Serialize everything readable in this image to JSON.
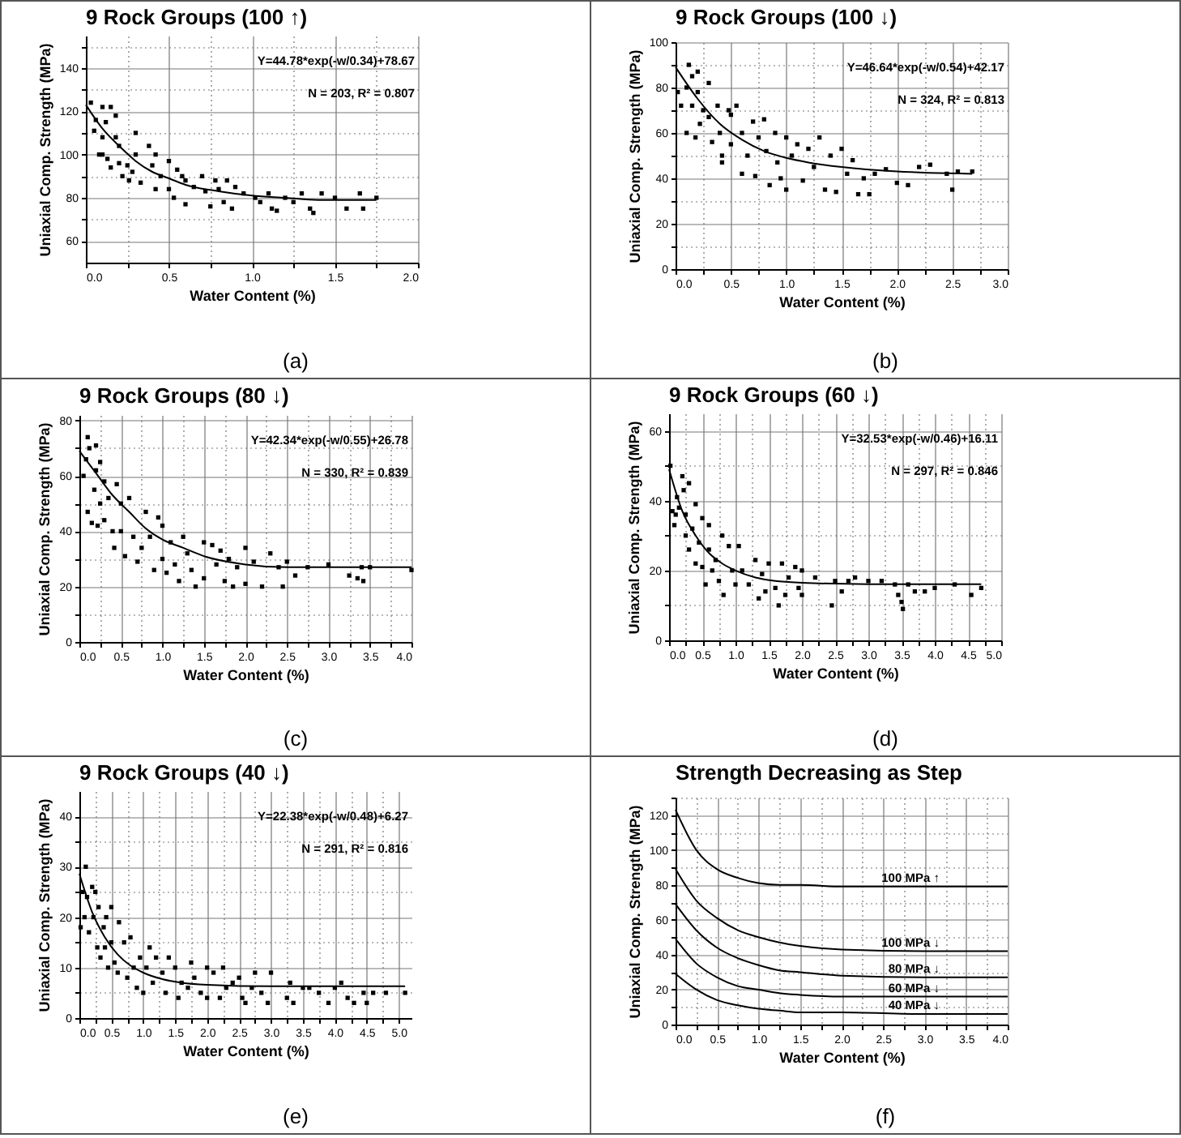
{
  "chart_data": [
    {
      "type": "scatter",
      "title": "9 Rock Groups (100 ↑)",
      "xlabel": "Water Content (%)",
      "ylabel": "Uniaxial Comp. Strength (MPa)",
      "grid": true,
      "annotations": [
        "Y=44.78*exp(-w/0.34)+78.67",
        "N = 203,    R² = 0.807",
        "(a)"
      ],
      "xlim": [
        0,
        2
      ],
      "xticks": [
        {
          "value": 0,
          "label": "0.0"
        },
        {
          "value": 0.25,
          "label": null
        },
        {
          "value": 0.5,
          "label": "0.5"
        },
        {
          "value": 0.75,
          "label": null
        },
        {
          "value": 1,
          "label": "1.0"
        },
        {
          "value": 1.25,
          "label": null
        },
        {
          "value": 1.5,
          "label": "1.5"
        },
        {
          "value": 1.75,
          "label": null
        },
        {
          "value": 2,
          "label": "2.0"
        }
      ],
      "ylim": [
        50,
        155
      ],
      "yticks": [
        60,
        {
          "value": 70,
          "label": null
        },
        80,
        {
          "value": 90,
          "label": null
        },
        100,
        {
          "value": 110,
          "label": null
        },
        120,
        {
          "value": 130,
          "label": null
        },
        140,
        {
          "value": 150,
          "label": null
        }
      ],
      "series": [
        {
          "marker": "square",
          "color": "#000000",
          "x": [
            0.03,
            0.06,
            0.05,
            0.1,
            0.15,
            0.12,
            0.1,
            0.1,
            0.13,
            0.15,
            0.18,
            0.2,
            0.2,
            0.22,
            0.25,
            0.26,
            0.3,
            0.3,
            0.28,
            0.33,
            0.38,
            0.4,
            0.42,
            0.42,
            0.45,
            0.5,
            0.5,
            0.53,
            0.55,
            0.58,
            0.6,
            0.6,
            0.65,
            0.7,
            0.72,
            0.75,
            0.78,
            0.8,
            0.83,
            0.85,
            0.88,
            0.9,
            0.95,
            1.02,
            1.05,
            1.1,
            1.12,
            1.15,
            1.2,
            1.25,
            1.3,
            1.35,
            1.37,
            1.42,
            1.5,
            1.57,
            1.65,
            1.67,
            1.75,
            0.18,
            0.08
          ],
          "values": [
            124,
            116,
            111,
            122,
            122,
            115,
            108,
            100,
            98,
            94,
            108,
            104,
            96,
            90,
            95,
            88,
            110,
            100,
            92,
            87,
            104,
            95,
            100,
            84,
            90,
            97,
            84,
            80,
            93,
            90,
            88,
            77,
            85,
            90,
            83,
            76,
            88,
            84,
            78,
            88,
            75,
            85,
            82,
            80,
            78,
            82,
            75,
            74,
            80,
            78,
            82,
            75,
            73,
            82,
            80,
            75,
            82,
            75,
            80,
            118,
            100
          ]
        },
        {
          "type": "line",
          "color": "#000000",
          "x": [
            0,
            0.1,
            0.2,
            0.3,
            0.4,
            0.5,
            0.6,
            0.8,
            1.0,
            1.2,
            1.4,
            1.75
          ],
          "values": [
            123,
            112,
            104,
            97,
            92,
            89,
            86,
            83,
            81,
            80,
            79,
            79
          ]
        }
      ]
    },
    {
      "type": "scatter",
      "title": "9 Rock Groups (100 ↓)",
      "xlabel": "Water Content (%)",
      "ylabel": "Uniaxial Comp. Strength (MPa)",
      "grid": true,
      "annotations": [
        "Y=46.64*exp(-w/0.54)+42.17",
        "N = 324,    R² = 0.813",
        "(b)"
      ],
      "xlim": [
        0,
        3
      ],
      "xticks": [
        {
          "value": 0,
          "label": "0.0"
        },
        {
          "value": 0.25,
          "label": null
        },
        {
          "value": 0.5,
          "label": "0.5"
        },
        {
          "value": 0.75,
          "label": null
        },
        {
          "value": 1,
          "label": "1.0"
        },
        {
          "value": 1.25,
          "label": null
        },
        {
          "value": 1.5,
          "label": "1.5"
        },
        {
          "value": 1.75,
          "label": null
        },
        {
          "value": 2,
          "label": "2.0"
        },
        {
          "value": 2.25,
          "label": null
        },
        {
          "value": 2.5,
          "label": "2.5"
        },
        {
          "value": 2.75,
          "label": null
        },
        {
          "value": 3,
          "label": "3.0"
        }
      ],
      "ylim": [
        0,
        100
      ],
      "yticks": [
        0,
        {
          "value": 10,
          "label": null
        },
        20,
        {
          "value": 30,
          "label": null
        },
        40,
        {
          "value": 50,
          "label": null
        },
        60,
        {
          "value": 70,
          "label": null
        },
        80,
        {
          "value": 90,
          "label": null
        },
        100
      ],
      "series": [
        {
          "marker": "square",
          "color": "#000000",
          "x": [
            0.02,
            0.05,
            0.1,
            0.1,
            0.12,
            0.15,
            0.15,
            0.18,
            0.2,
            0.2,
            0.22,
            0.25,
            0.3,
            0.3,
            0.33,
            0.38,
            0.4,
            0.42,
            0.42,
            0.48,
            0.5,
            0.5,
            0.55,
            0.6,
            0.6,
            0.65,
            0.7,
            0.72,
            0.75,
            0.8,
            0.82,
            0.85,
            0.9,
            0.92,
            0.95,
            1.0,
            1.0,
            1.05,
            1.1,
            1.15,
            1.2,
            1.25,
            1.3,
            1.35,
            1.4,
            1.45,
            1.5,
            1.55,
            1.6,
            1.65,
            1.7,
            1.75,
            1.8,
            1.9,
            2.0,
            2.1,
            2.2,
            2.3,
            2.45,
            2.5,
            2.55,
            2.68
          ],
          "values": [
            78,
            72,
            60,
            80,
            90,
            85,
            72,
            58,
            78,
            87,
            64,
            70,
            82,
            67,
            56,
            72,
            60,
            50,
            47,
            70,
            68,
            55,
            72,
            60,
            42,
            50,
            65,
            41,
            58,
            66,
            52,
            37,
            60,
            47,
            40,
            58,
            35,
            50,
            55,
            39,
            53,
            45,
            58,
            35,
            50,
            34,
            53,
            42,
            48,
            33,
            40,
            33,
            42,
            44,
            38,
            37,
            45,
            46,
            42,
            35,
            43,
            43
          ]
        },
        {
          "type": "line",
          "color": "#000000",
          "x": [
            0,
            0.2,
            0.4,
            0.6,
            0.8,
            1.0,
            1.2,
            1.5,
            2.0,
            2.68
          ],
          "values": [
            89,
            75,
            64,
            57,
            52,
            49,
            47,
            45,
            43,
            42
          ]
        }
      ]
    },
    {
      "type": "scatter",
      "title": "9 Rock Groups (80 ↓)",
      "xlabel": "Water Content (%)",
      "ylabel": "Uniaxial Comp. Strength (MPa)",
      "grid": true,
      "annotations": [
        "Y=42.34*exp(-w/0.55)+26.78",
        "N = 330,    R² = 0.839",
        "(c)"
      ],
      "xlim": [
        0,
        4
      ],
      "xticks": [
        {
          "value": 0,
          "label": "0.0"
        },
        {
          "value": 0.25,
          "label": null
        },
        {
          "value": 0.5,
          "label": "0.5"
        },
        {
          "value": 0.75,
          "label": null
        },
        {
          "value": 1,
          "label": "1.0"
        },
        {
          "value": 1.25,
          "label": null
        },
        {
          "value": 1.5,
          "label": "1.5"
        },
        {
          "value": 1.75,
          "label": null
        },
        {
          "value": 2,
          "label": "2.0"
        },
        {
          "value": 2.25,
          "label": null
        },
        {
          "value": 2.5,
          "label": "2.5"
        },
        {
          "value": 2.75,
          "label": null
        },
        {
          "value": 3,
          "label": "3.0"
        },
        {
          "value": 3.25,
          "label": null
        },
        {
          "value": 3.5,
          "label": "3.5"
        },
        {
          "value": 3.75,
          "label": null
        },
        {
          "value": 4,
          "label": "4.0"
        }
      ],
      "ylim": [
        0,
        82
      ],
      "yticks": [
        0,
        {
          "value": 10,
          "label": null
        },
        20,
        {
          "value": 30,
          "label": null
        },
        40,
        {
          "value": 50,
          "label": null
        },
        60,
        {
          "value": 70,
          "label": null
        },
        80
      ],
      "series": [
        {
          "marker": "square",
          "color": "#000000",
          "x": [
            0.05,
            0.08,
            0.1,
            0.12,
            0.1,
            0.15,
            0.18,
            0.2,
            0.2,
            0.22,
            0.25,
            0.25,
            0.3,
            0.3,
            0.35,
            0.4,
            0.42,
            0.45,
            0.5,
            0.5,
            0.55,
            0.6,
            0.65,
            0.7,
            0.75,
            0.8,
            0.85,
            0.9,
            0.95,
            1.0,
            1.0,
            1.05,
            1.1,
            1.15,
            1.2,
            1.25,
            1.3,
            1.35,
            1.4,
            1.5,
            1.5,
            1.6,
            1.65,
            1.7,
            1.75,
            1.8,
            1.85,
            1.9,
            2.0,
            2.0,
            2.1,
            2.2,
            2.3,
            2.4,
            2.45,
            2.5,
            2.6,
            2.75,
            3.0,
            3.25,
            3.35,
            3.42,
            3.4,
            3.5,
            4.0
          ],
          "values": [
            60,
            66,
            74,
            70,
            47,
            43,
            55,
            71,
            62,
            42,
            65,
            50,
            58,
            44,
            52,
            40,
            34,
            57,
            50,
            40,
            31,
            52,
            38,
            29,
            34,
            47,
            38,
            26,
            45,
            42,
            30,
            25,
            36,
            28,
            22,
            38,
            32,
            26,
            20,
            36,
            23,
            35,
            28,
            33,
            22,
            30,
            20,
            27,
            34,
            21,
            29,
            20,
            32,
            27,
            20,
            29,
            24,
            27,
            28,
            24,
            23,
            22,
            27,
            27,
            26
          ]
        },
        {
          "type": "line",
          "color": "#000000",
          "x": [
            0,
            0.2,
            0.4,
            0.6,
            0.8,
            1.0,
            1.25,
            1.5,
            2.0,
            2.5,
            4.0
          ],
          "values": [
            69,
            61,
            53,
            47,
            41,
            37,
            34,
            31,
            28,
            27,
            27
          ]
        }
      ]
    },
    {
      "type": "scatter",
      "title": "9 Rock Groups (60 ↓)",
      "xlabel": "Water Content (%)",
      "ylabel": "Uniaxial Comp. Strength (MPa)",
      "grid": true,
      "annotations": [
        "Y=32.53*exp(-w/0.46)+16.11",
        "N = 297,    R² = 0.846",
        "(d)"
      ],
      "xlim": [
        0,
        5
      ],
      "xticks": [
        {
          "value": 0,
          "label": "0.0"
        },
        {
          "value": 0.25,
          "label": null
        },
        {
          "value": 0.5,
          "label": "0.5"
        },
        {
          "value": 0.75,
          "label": null
        },
        {
          "value": 1,
          "label": "1.0"
        },
        {
          "value": 1.25,
          "label": null
        },
        {
          "value": 1.5,
          "label": "1.5"
        },
        {
          "value": 1.75,
          "label": null
        },
        {
          "value": 2,
          "label": "2.0"
        },
        {
          "value": 2.25,
          "label": null
        },
        {
          "value": 2.5,
          "label": "2.5"
        },
        {
          "value": 2.75,
          "label": null
        },
        {
          "value": 3,
          "label": "3.0"
        },
        {
          "value": 3.25,
          "label": null
        },
        {
          "value": 3.5,
          "label": "3.5"
        },
        {
          "value": 3.75,
          "label": null
        },
        {
          "value": 4,
          "label": "4.0"
        },
        {
          "value": 4.25,
          "label": null
        },
        {
          "value": 4.5,
          "label": "4.5"
        },
        {
          "value": 4.75,
          "label": null
        },
        {
          "value": 5,
          "label": "5.0"
        }
      ],
      "ylim": [
        0,
        65
      ],
      "yticks": [
        0,
        {
          "value": 10,
          "label": null
        },
        20,
        {
          "value": 30,
          "label": null
        },
        40,
        {
          "value": 50,
          "label": null
        },
        60
      ],
      "series": [
        {
          "marker": "square",
          "color": "#000000",
          "x": [
            0.02,
            0.05,
            0.08,
            0.1,
            0.12,
            0.15,
            0.2,
            0.22,
            0.25,
            0.25,
            0.3,
            0.3,
            0.35,
            0.4,
            0.4,
            0.45,
            0.5,
            0.5,
            0.55,
            0.6,
            0.6,
            0.65,
            0.7,
            0.75,
            0.8,
            0.82,
            0.9,
            0.95,
            1.0,
            1.05,
            1.1,
            1.2,
            1.3,
            1.35,
            1.4,
            1.45,
            1.5,
            1.6,
            1.65,
            1.7,
            1.75,
            1.8,
            1.9,
            1.95,
            2.0,
            2.0,
            2.2,
            2.45,
            2.5,
            2.6,
            2.7,
            2.8,
            3.0,
            3.2,
            3.4,
            3.45,
            3.5,
            3.52,
            3.6,
            3.7,
            3.85,
            4.0,
            4.3,
            4.55,
            4.7
          ],
          "values": [
            50,
            37,
            33,
            36,
            41,
            38,
            47,
            43,
            30,
            36,
            45,
            26,
            32,
            39,
            22,
            28,
            35,
            21,
            16,
            26,
            33,
            20,
            23,
            17,
            30,
            13,
            27,
            20,
            16,
            27,
            20,
            16,
            23,
            12,
            19,
            14,
            22,
            15,
            10,
            22,
            13,
            18,
            21,
            15,
            20,
            13,
            18,
            10,
            17,
            14,
            17,
            18,
            17,
            17,
            16,
            13,
            11,
            9,
            16,
            14,
            14,
            15,
            16,
            13,
            15
          ]
        },
        {
          "type": "line",
          "color": "#000000",
          "x": [
            0,
            0.2,
            0.4,
            0.6,
            0.8,
            1.0,
            1.3,
            1.6,
            2.0,
            3.0,
            4.7
          ],
          "values": [
            49,
            37,
            30,
            25,
            22,
            20,
            18,
            17,
            16.5,
            16.1,
            16.1
          ]
        }
      ]
    },
    {
      "type": "scatter",
      "title": "9 Rock Groups (40 ↓)",
      "xlabel": "Water Content (%)",
      "ylabel": "Uniaxial Comp. Strength (MPa)",
      "grid": true,
      "annotations": [
        "Y=22.38*exp(-w/0.48)+6.27",
        "N = 291,    R² = 0.816",
        "(e)"
      ],
      "xlim": [
        0,
        5.2
      ],
      "xticks": [
        {
          "value": 0,
          "label": "0.0"
        },
        {
          "value": 0.25,
          "label": null
        },
        {
          "value": 0.5,
          "label": "0.5"
        },
        {
          "value": 0.75,
          "label": null
        },
        {
          "value": 1,
          "label": "1.0"
        },
        {
          "value": 1.25,
          "label": null
        },
        {
          "value": 1.5,
          "label": "1.5"
        },
        {
          "value": 1.75,
          "label": null
        },
        {
          "value": 2,
          "label": "2.0"
        },
        {
          "value": 2.25,
          "label": null
        },
        {
          "value": 2.5,
          "label": "2.5"
        },
        {
          "value": 2.75,
          "label": null
        },
        {
          "value": 3,
          "label": "3.0"
        },
        {
          "value": 3.25,
          "label": null
        },
        {
          "value": 3.5,
          "label": "3.5"
        },
        {
          "value": 3.75,
          "label": null
        },
        {
          "value": 4,
          "label": "4.0"
        },
        {
          "value": 4.25,
          "label": null
        },
        {
          "value": 4.5,
          "label": "4.5"
        },
        {
          "value": 4.75,
          "label": null
        },
        {
          "value": 5,
          "label": "5.0"
        }
      ],
      "ylim": [
        0,
        45
      ],
      "yticks": [
        0,
        {
          "value": 5,
          "label": null
        },
        10,
        {
          "value": 15,
          "label": null
        },
        20,
        {
          "value": 25,
          "label": null
        },
        30,
        {
          "value": 35,
          "label": null
        },
        40
      ],
      "series": [
        {
          "marker": "square",
          "color": "#000000",
          "x": [
            0.02,
            0.05,
            0.08,
            0.1,
            0.12,
            0.15,
            0.2,
            0.22,
            0.25,
            0.28,
            0.3,
            0.33,
            0.38,
            0.4,
            0.42,
            0.45,
            0.5,
            0.5,
            0.55,
            0.6,
            0.62,
            0.7,
            0.75,
            0.8,
            0.85,
            0.9,
            0.95,
            1.0,
            1.05,
            1.1,
            1.15,
            1.2,
            1.3,
            1.35,
            1.4,
            1.5,
            1.55,
            1.6,
            1.7,
            1.75,
            1.8,
            1.9,
            2.0,
            2.0,
            2.1,
            2.2,
            2.25,
            2.3,
            2.4,
            2.5,
            2.55,
            2.6,
            2.7,
            2.75,
            2.85,
            2.95,
            3.0,
            3.25,
            3.3,
            3.35,
            3.5,
            3.6,
            3.75,
            3.9,
            4.0,
            4.1,
            4.2,
            4.3,
            4.45,
            4.5,
            4.6,
            4.8,
            5.1
          ],
          "values": [
            18,
            25,
            20,
            30,
            24,
            17,
            26,
            20,
            25,
            14,
            22,
            12,
            18,
            14,
            20,
            10,
            22,
            15,
            11,
            9,
            19,
            15,
            8,
            16,
            10,
            6,
            12,
            5,
            10,
            14,
            7,
            12,
            9,
            5,
            12,
            10,
            4,
            7,
            6,
            11,
            8,
            5,
            10,
            4,
            9,
            4,
            10,
            6,
            7,
            8,
            4,
            3,
            6,
            9,
            5,
            3,
            9,
            4,
            7,
            3,
            6,
            6,
            5,
            3,
            6,
            7,
            4,
            3,
            5,
            3,
            5,
            5,
            5
          ]
        },
        {
          "type": "line",
          "color": "#000000",
          "x": [
            0,
            0.2,
            0.4,
            0.6,
            0.8,
            1.0,
            1.3,
            1.6,
            2.0,
            3.0,
            5.1
          ],
          "values": [
            28.6,
            21,
            16,
            12.6,
            10.4,
            9,
            7.7,
            7,
            6.6,
            6.3,
            6.3
          ]
        }
      ]
    },
    {
      "type": "line",
      "title": "Strength Decreasing as Step",
      "xlabel": "Water Content (%)",
      "ylabel": "Uniaxial Comp. Strength (MPa)",
      "grid": true,
      "annotations": [
        "(f)"
      ],
      "x": [
        0,
        0.25,
        0.5,
        0.75,
        1.0,
        1.25,
        1.5,
        2.0,
        3.0,
        4.0
      ],
      "xlim": [
        0,
        4
      ],
      "xticks": [
        {
          "value": 0,
          "label": "0.0"
        },
        {
          "value": 0.25,
          "label": null
        },
        {
          "value": 0.5,
          "label": "0.5"
        },
        {
          "value": 0.75,
          "label": null
        },
        {
          "value": 1,
          "label": "1.0"
        },
        {
          "value": 1.25,
          "label": null
        },
        {
          "value": 1.5,
          "label": "1.5"
        },
        {
          "value": 1.75,
          "label": null
        },
        {
          "value": 2,
          "label": "2.0"
        },
        {
          "value": 2.25,
          "label": null
        },
        {
          "value": 2.5,
          "label": "2.5"
        },
        {
          "value": 2.75,
          "label": null
        },
        {
          "value": 3,
          "label": "3.0"
        },
        {
          "value": 3.25,
          "label": null
        },
        {
          "value": 3.5,
          "label": "3.5"
        },
        {
          "value": 3.75,
          "label": null
        },
        {
          "value": 4,
          "label": "4.0"
        }
      ],
      "ylim": [
        0,
        130
      ],
      "yticks": [
        0,
        {
          "value": 10,
          "label": null
        },
        20,
        {
          "value": 30,
          "label": null
        },
        40,
        {
          "value": 50,
          "label": null
        },
        60,
        {
          "value": 70,
          "label": null
        },
        80,
        {
          "value": 90,
          "label": null
        },
        100,
        {
          "value": 110,
          "label": null
        },
        120,
        {
          "value": 130,
          "label": null
        }
      ],
      "series": [
        {
          "name": "100 MPa ↑",
          "color": "#000000",
          "values": [
            123,
            100,
            89,
            84,
            81,
            80,
            80,
            79,
            79,
            79
          ]
        },
        {
          "name": "100 MPa ↓",
          "color": "#000000",
          "values": [
            89,
            71,
            61,
            54,
            50,
            47,
            45,
            43,
            42,
            42
          ]
        },
        {
          "name": "80 MPa ↓",
          "color": "#000000",
          "values": [
            69,
            54,
            44,
            38,
            34,
            31,
            30,
            28,
            27,
            27
          ]
        },
        {
          "name": "60 MPa ↓",
          "color": "#000000",
          "values": [
            49,
            35,
            27,
            22,
            20,
            18,
            17,
            16,
            16,
            16
          ]
        },
        {
          "name": "40 MPa ↓",
          "color": "#000000",
          "values": [
            29,
            20,
            14,
            11,
            9,
            8,
            7,
            7,
            6,
            6
          ]
        }
      ]
    }
  ]
}
